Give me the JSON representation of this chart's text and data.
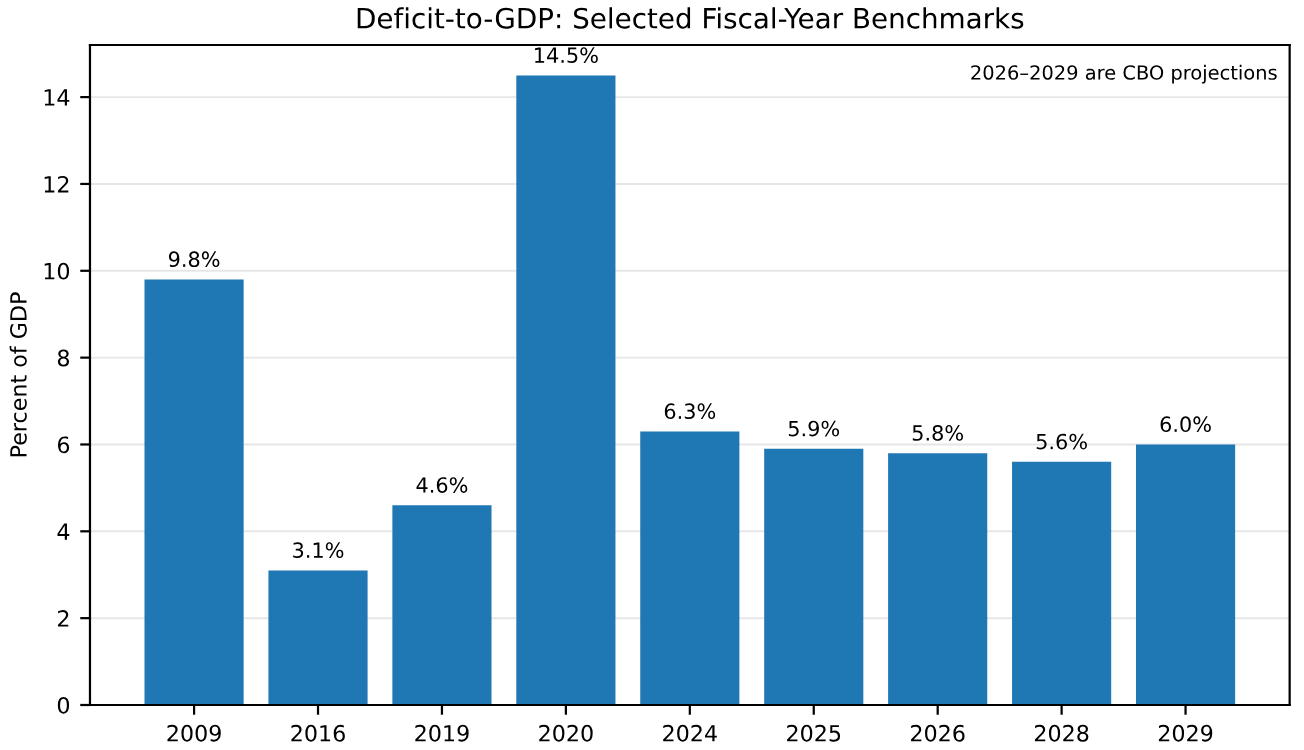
{
  "chart_data": {
    "type": "bar",
    "title": "Deficit-to-GDP: Selected Fiscal-Year Benchmarks",
    "ylabel": "Percent of GDP",
    "categories": [
      "2009",
      "2016",
      "2019",
      "2020",
      "2024",
      "2025",
      "2026",
      "2028",
      "2029"
    ],
    "values": [
      9.8,
      3.1,
      4.6,
      14.5,
      6.3,
      5.9,
      5.8,
      5.6,
      6.0
    ],
    "value_labels": [
      "9.8%",
      "3.1%",
      "4.6%",
      "14.5%",
      "6.3%",
      "5.9%",
      "5.8%",
      "5.6%",
      "6.0%"
    ],
    "color": "#1f77b4",
    "ylim": [
      0,
      15.2
    ],
    "yticks": [
      0,
      2,
      4,
      6,
      8,
      10,
      12,
      14
    ],
    "grid": "y",
    "annotations": [
      "2026–2029 are CBO projections"
    ]
  }
}
